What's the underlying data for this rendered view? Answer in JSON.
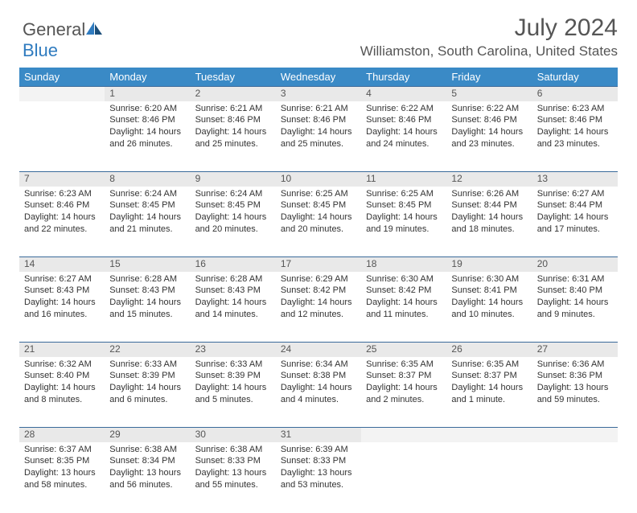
{
  "logo": {
    "text1": "General",
    "text2": "Blue"
  },
  "title": "July 2024",
  "location": "Williamston, South Carolina, United States",
  "colors": {
    "header_bg": "#3a8ac6",
    "header_text": "#ffffff",
    "daynum_bg": "#e9e9e9",
    "daynum_border": "#3a6a9a",
    "text": "#333333",
    "muted": "#555555"
  },
  "typography": {
    "title_fontsize": 30,
    "location_fontsize": 17,
    "header_fontsize": 13,
    "cell_fontsize": 11
  },
  "days_of_week": [
    "Sunday",
    "Monday",
    "Tuesday",
    "Wednesday",
    "Thursday",
    "Friday",
    "Saturday"
  ],
  "weeks": [
    [
      null,
      {
        "n": "1",
        "sunrise": "Sunrise: 6:20 AM",
        "sunset": "Sunset: 8:46 PM",
        "d1": "Daylight: 14 hours",
        "d2": "and 26 minutes."
      },
      {
        "n": "2",
        "sunrise": "Sunrise: 6:21 AM",
        "sunset": "Sunset: 8:46 PM",
        "d1": "Daylight: 14 hours",
        "d2": "and 25 minutes."
      },
      {
        "n": "3",
        "sunrise": "Sunrise: 6:21 AM",
        "sunset": "Sunset: 8:46 PM",
        "d1": "Daylight: 14 hours",
        "d2": "and 25 minutes."
      },
      {
        "n": "4",
        "sunrise": "Sunrise: 6:22 AM",
        "sunset": "Sunset: 8:46 PM",
        "d1": "Daylight: 14 hours",
        "d2": "and 24 minutes."
      },
      {
        "n": "5",
        "sunrise": "Sunrise: 6:22 AM",
        "sunset": "Sunset: 8:46 PM",
        "d1": "Daylight: 14 hours",
        "d2": "and 23 minutes."
      },
      {
        "n": "6",
        "sunrise": "Sunrise: 6:23 AM",
        "sunset": "Sunset: 8:46 PM",
        "d1": "Daylight: 14 hours",
        "d2": "and 23 minutes."
      }
    ],
    [
      {
        "n": "7",
        "sunrise": "Sunrise: 6:23 AM",
        "sunset": "Sunset: 8:46 PM",
        "d1": "Daylight: 14 hours",
        "d2": "and 22 minutes."
      },
      {
        "n": "8",
        "sunrise": "Sunrise: 6:24 AM",
        "sunset": "Sunset: 8:45 PM",
        "d1": "Daylight: 14 hours",
        "d2": "and 21 minutes."
      },
      {
        "n": "9",
        "sunrise": "Sunrise: 6:24 AM",
        "sunset": "Sunset: 8:45 PM",
        "d1": "Daylight: 14 hours",
        "d2": "and 20 minutes."
      },
      {
        "n": "10",
        "sunrise": "Sunrise: 6:25 AM",
        "sunset": "Sunset: 8:45 PM",
        "d1": "Daylight: 14 hours",
        "d2": "and 20 minutes."
      },
      {
        "n": "11",
        "sunrise": "Sunrise: 6:25 AM",
        "sunset": "Sunset: 8:45 PM",
        "d1": "Daylight: 14 hours",
        "d2": "and 19 minutes."
      },
      {
        "n": "12",
        "sunrise": "Sunrise: 6:26 AM",
        "sunset": "Sunset: 8:44 PM",
        "d1": "Daylight: 14 hours",
        "d2": "and 18 minutes."
      },
      {
        "n": "13",
        "sunrise": "Sunrise: 6:27 AM",
        "sunset": "Sunset: 8:44 PM",
        "d1": "Daylight: 14 hours",
        "d2": "and 17 minutes."
      }
    ],
    [
      {
        "n": "14",
        "sunrise": "Sunrise: 6:27 AM",
        "sunset": "Sunset: 8:43 PM",
        "d1": "Daylight: 14 hours",
        "d2": "and 16 minutes."
      },
      {
        "n": "15",
        "sunrise": "Sunrise: 6:28 AM",
        "sunset": "Sunset: 8:43 PM",
        "d1": "Daylight: 14 hours",
        "d2": "and 15 minutes."
      },
      {
        "n": "16",
        "sunrise": "Sunrise: 6:28 AM",
        "sunset": "Sunset: 8:43 PM",
        "d1": "Daylight: 14 hours",
        "d2": "and 14 minutes."
      },
      {
        "n": "17",
        "sunrise": "Sunrise: 6:29 AM",
        "sunset": "Sunset: 8:42 PM",
        "d1": "Daylight: 14 hours",
        "d2": "and 12 minutes."
      },
      {
        "n": "18",
        "sunrise": "Sunrise: 6:30 AM",
        "sunset": "Sunset: 8:42 PM",
        "d1": "Daylight: 14 hours",
        "d2": "and 11 minutes."
      },
      {
        "n": "19",
        "sunrise": "Sunrise: 6:30 AM",
        "sunset": "Sunset: 8:41 PM",
        "d1": "Daylight: 14 hours",
        "d2": "and 10 minutes."
      },
      {
        "n": "20",
        "sunrise": "Sunrise: 6:31 AM",
        "sunset": "Sunset: 8:40 PM",
        "d1": "Daylight: 14 hours",
        "d2": "and 9 minutes."
      }
    ],
    [
      {
        "n": "21",
        "sunrise": "Sunrise: 6:32 AM",
        "sunset": "Sunset: 8:40 PM",
        "d1": "Daylight: 14 hours",
        "d2": "and 8 minutes."
      },
      {
        "n": "22",
        "sunrise": "Sunrise: 6:33 AM",
        "sunset": "Sunset: 8:39 PM",
        "d1": "Daylight: 14 hours",
        "d2": "and 6 minutes."
      },
      {
        "n": "23",
        "sunrise": "Sunrise: 6:33 AM",
        "sunset": "Sunset: 8:39 PM",
        "d1": "Daylight: 14 hours",
        "d2": "and 5 minutes."
      },
      {
        "n": "24",
        "sunrise": "Sunrise: 6:34 AM",
        "sunset": "Sunset: 8:38 PM",
        "d1": "Daylight: 14 hours",
        "d2": "and 4 minutes."
      },
      {
        "n": "25",
        "sunrise": "Sunrise: 6:35 AM",
        "sunset": "Sunset: 8:37 PM",
        "d1": "Daylight: 14 hours",
        "d2": "and 2 minutes."
      },
      {
        "n": "26",
        "sunrise": "Sunrise: 6:35 AM",
        "sunset": "Sunset: 8:37 PM",
        "d1": "Daylight: 14 hours",
        "d2": "and 1 minute."
      },
      {
        "n": "27",
        "sunrise": "Sunrise: 6:36 AM",
        "sunset": "Sunset: 8:36 PM",
        "d1": "Daylight: 13 hours",
        "d2": "and 59 minutes."
      }
    ],
    [
      {
        "n": "28",
        "sunrise": "Sunrise: 6:37 AM",
        "sunset": "Sunset: 8:35 PM",
        "d1": "Daylight: 13 hours",
        "d2": "and 58 minutes."
      },
      {
        "n": "29",
        "sunrise": "Sunrise: 6:38 AM",
        "sunset": "Sunset: 8:34 PM",
        "d1": "Daylight: 13 hours",
        "d2": "and 56 minutes."
      },
      {
        "n": "30",
        "sunrise": "Sunrise: 6:38 AM",
        "sunset": "Sunset: 8:33 PM",
        "d1": "Daylight: 13 hours",
        "d2": "and 55 minutes."
      },
      {
        "n": "31",
        "sunrise": "Sunrise: 6:39 AM",
        "sunset": "Sunset: 8:33 PM",
        "d1": "Daylight: 13 hours",
        "d2": "and 53 minutes."
      },
      null,
      null,
      null
    ]
  ]
}
